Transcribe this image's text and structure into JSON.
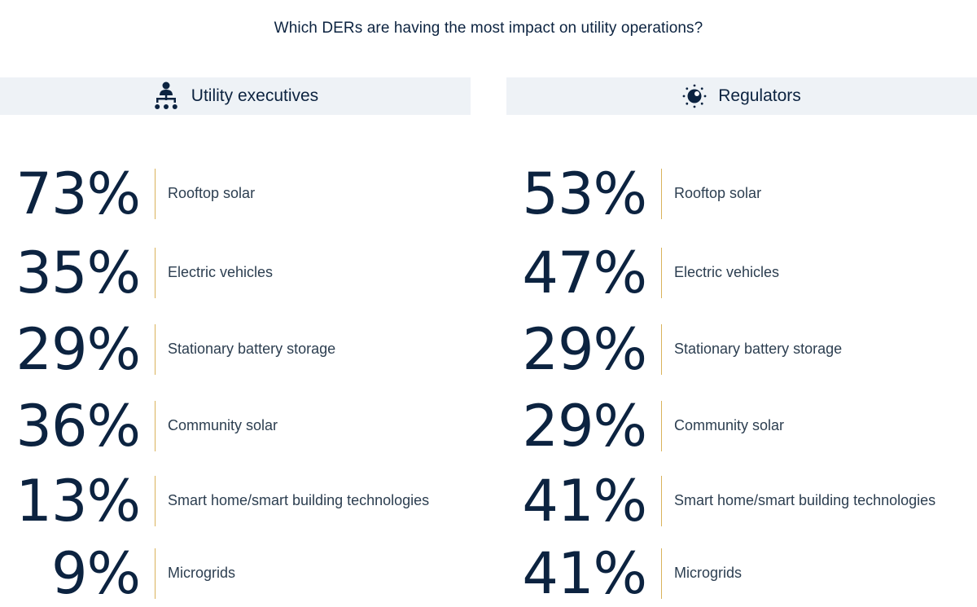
{
  "chart_data": {
    "type": "table",
    "title": "Which DERs are having the most impact on utility operations?",
    "categories": [
      "Rooftop solar",
      "Electric vehicles",
      "Stationary battery storage",
      "Community solar",
      "Smart home/smart building technologies",
      "Microgrids"
    ],
    "series": [
      {
        "name": "Utility executives",
        "icon": "org-chart-icon",
        "values": [
          73,
          35,
          29,
          36,
          13,
          9
        ]
      },
      {
        "name": "Regulators",
        "icon": "sun-icon",
        "values": [
          53,
          47,
          29,
          29,
          41,
          41
        ]
      }
    ],
    "unit": "%"
  },
  "colors": {
    "text": "#0c2340",
    "header_bg": "#eef2f6",
    "divider": "#d9b25a"
  }
}
